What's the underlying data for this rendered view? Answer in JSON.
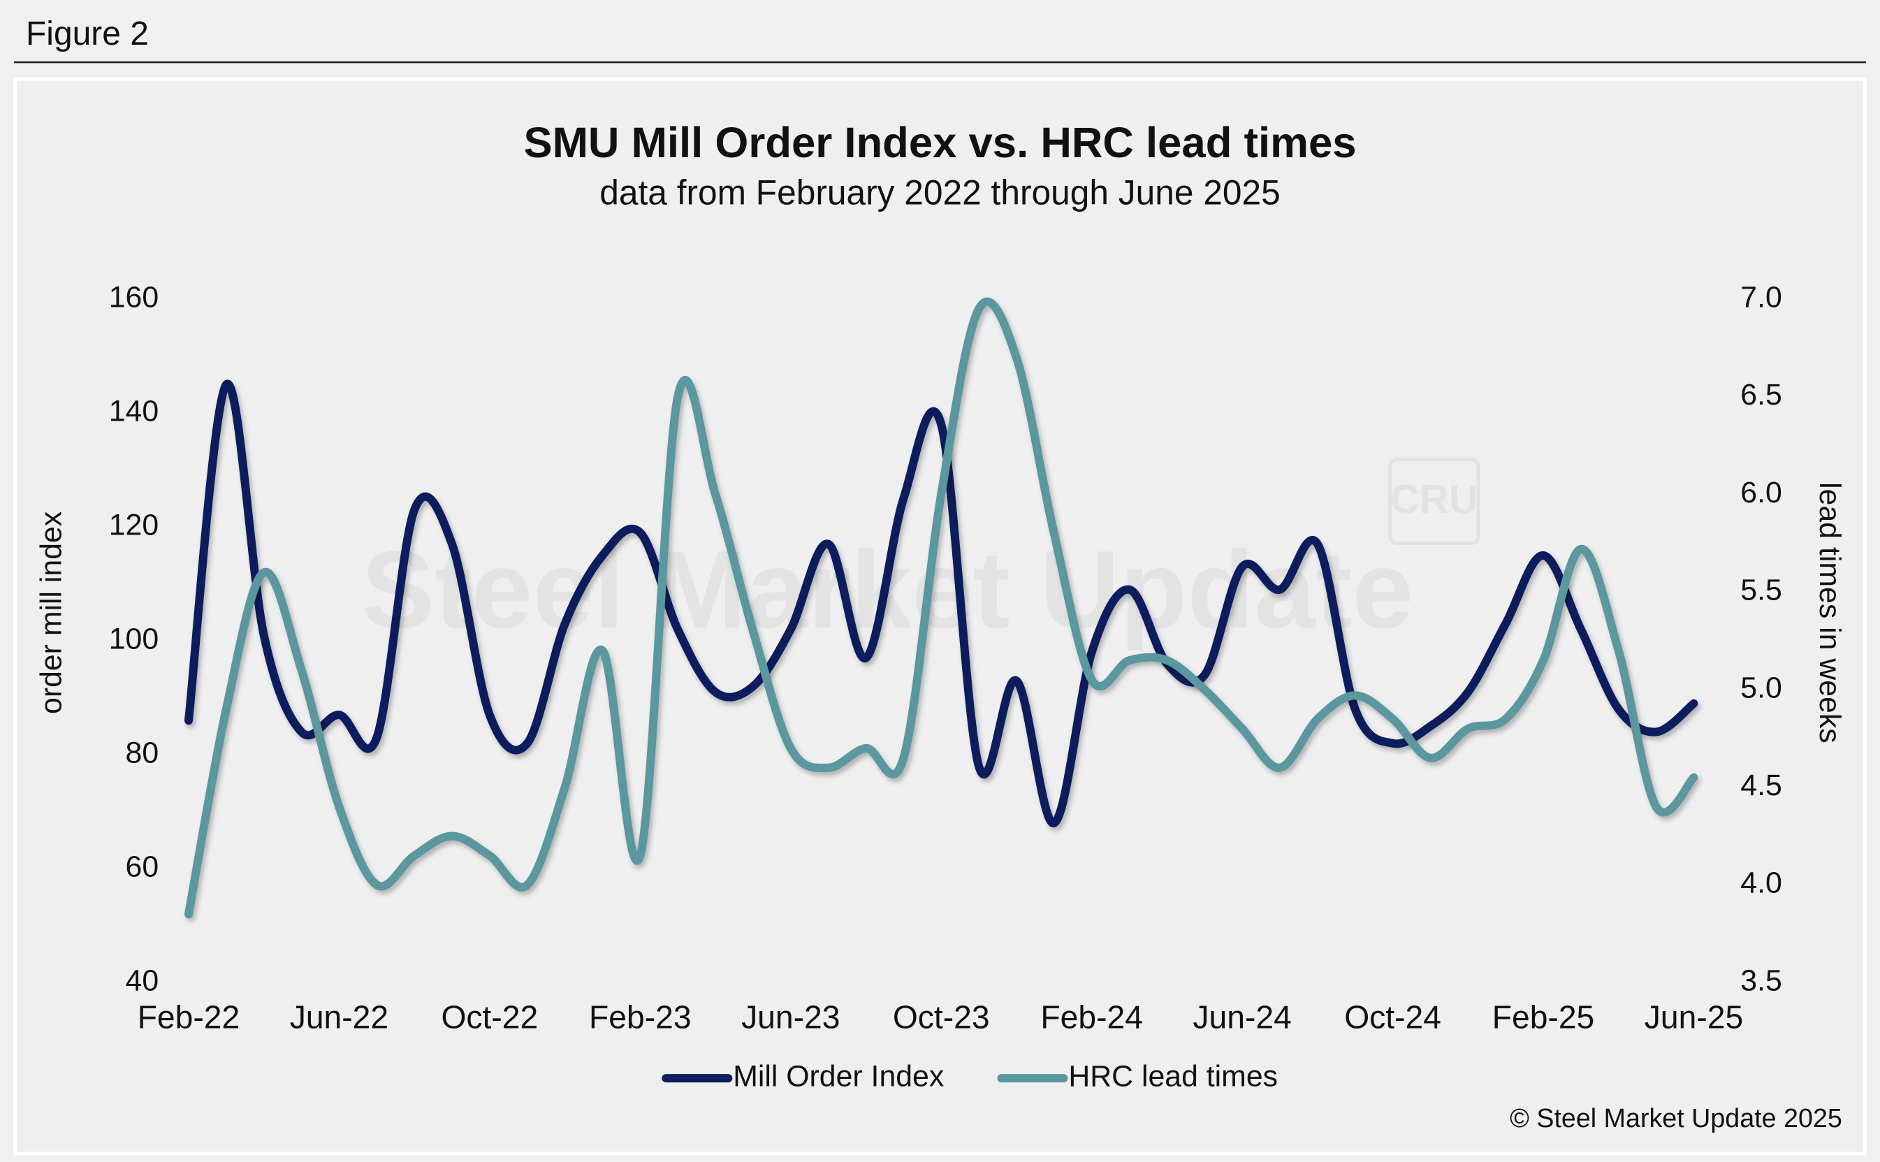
{
  "figure_label": "Figure 2",
  "chart_data": {
    "type": "line",
    "title": "SMU Mill Order Index vs. HRC lead times",
    "subtitle": "data from February 2022 through June 2025",
    "ylabel": "order mill index",
    "y2label": "lead times in weeks",
    "watermark": "Steel Market Update",
    "watermark_logo": "CRU",
    "source": "© Steel Market Update 2025",
    "categories": [
      "Feb-22",
      null,
      null,
      null,
      "Jun-22",
      null,
      null,
      null,
      "Oct-22",
      null,
      null,
      null,
      "Feb-23",
      null,
      null,
      null,
      "Jun-23",
      null,
      null,
      null,
      "Oct-23",
      null,
      null,
      null,
      "Feb-24",
      null,
      null,
      null,
      "Jun-24",
      null,
      null,
      null,
      "Oct-24",
      null,
      null,
      null,
      "Feb-25",
      null,
      null,
      null,
      "Jun-25"
    ],
    "series": [
      {
        "name": "Mill Order Index",
        "color": "#0d1f5c",
        "axis": "y",
        "values": [
          86,
          145,
          101,
          84,
          87,
          83,
          123,
          117,
          87,
          82,
          103,
          115,
          119,
          102,
          91,
          92,
          102,
          117,
          97,
          125,
          138,
          78,
          93,
          68,
          98,
          109,
          96,
          94,
          113,
          109,
          117,
          88,
          82,
          85,
          91,
          103,
          115,
          102,
          88,
          84,
          89
        ]
      },
      {
        "name": "HRC lead times",
        "color": "#5a979e",
        "axis": "y2",
        "values": [
          3.85,
          4.9,
          5.6,
          5.1,
          4.4,
          4.0,
          4.15,
          4.25,
          4.15,
          4.0,
          4.5,
          5.2,
          4.15,
          6.5,
          6.0,
          5.3,
          4.7,
          4.6,
          4.7,
          4.65,
          6.0,
          6.95,
          6.7,
          5.8,
          5.05,
          5.15,
          5.15,
          5.0,
          4.8,
          4.6,
          4.85,
          4.97,
          4.85,
          4.65,
          4.8,
          4.85,
          5.15,
          5.72,
          5.2,
          4.4,
          4.55
        ]
      }
    ],
    "ylim": [
      40,
      160
    ],
    "yticks": [
      40,
      60,
      80,
      100,
      120,
      140,
      160
    ],
    "y2lim": [
      3.5,
      7.0
    ],
    "y2ticks": [
      3.5,
      {
        "value": 4,
        "label": "4.0"
      },
      4.5,
      {
        "value": 5,
        "label": "5.0"
      },
      5.5,
      {
        "value": 6,
        "label": "6.0"
      },
      6.5,
      {
        "value": 7,
        "label": "7.0"
      }
    ],
    "grid": false,
    "legend": "bottom"
  }
}
